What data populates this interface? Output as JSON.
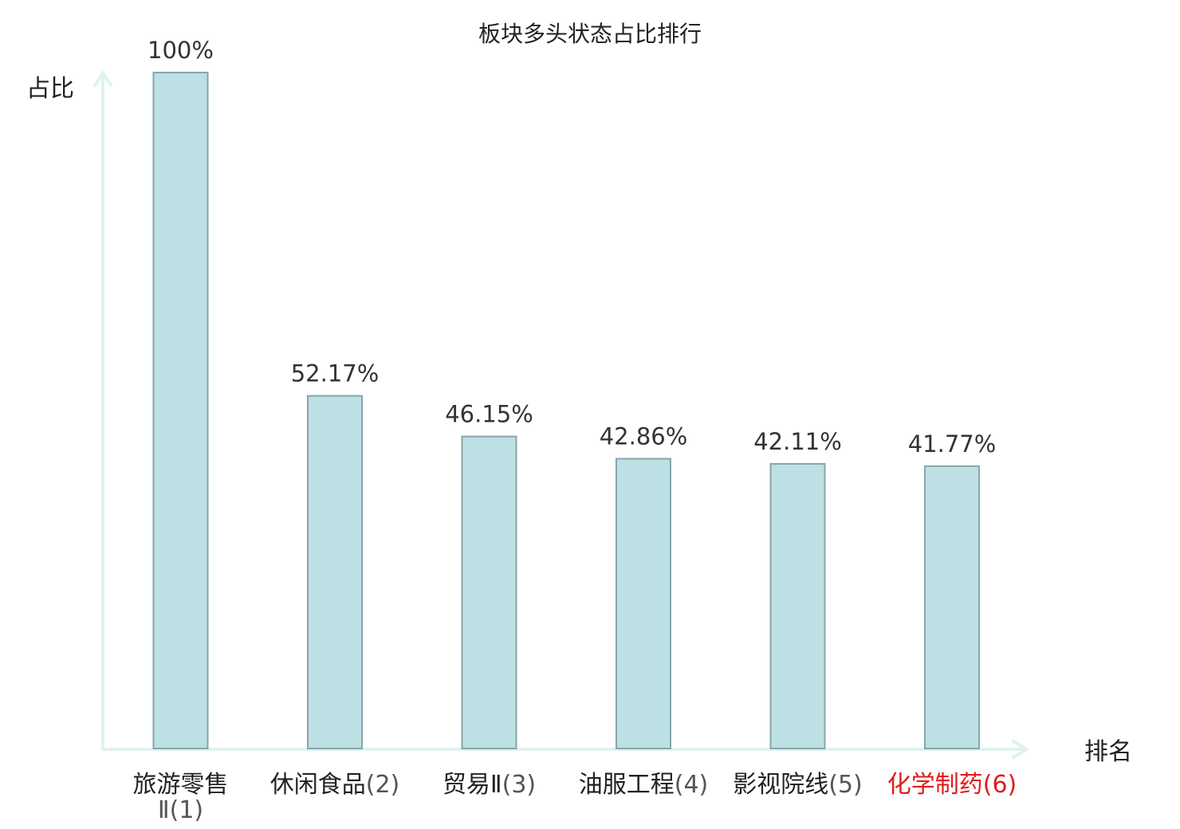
{
  "chart_data": {
    "type": "bar",
    "title": "板块多头状态占比排行",
    "ylabel": "占比",
    "xlabel": "排名",
    "ylim": [
      0,
      100
    ],
    "grid": false,
    "legend": "none",
    "categories": [
      {
        "name": "旅游零售Ⅱ",
        "rank": "(1)",
        "highlight": false
      },
      {
        "name": "休闲食品",
        "rank": "(2)",
        "highlight": false
      },
      {
        "name": "贸易Ⅱ",
        "rank": "(3)",
        "highlight": false
      },
      {
        "name": "油服工程",
        "rank": "(4)",
        "highlight": false
      },
      {
        "name": "影视院线",
        "rank": "(5)",
        "highlight": false
      },
      {
        "name": "化学制药",
        "rank": "(6)",
        "highlight": true
      }
    ],
    "values": [
      100,
      52.17,
      46.15,
      42.86,
      42.11,
      41.77
    ],
    "value_labels": [
      "100%",
      "52.17%",
      "46.15%",
      "42.86%",
      "42.11%",
      "41.77%"
    ],
    "colors": {
      "bar_fill": "#bce0e3",
      "bar_stroke": "#86a6aa",
      "axis": "#e0f2ef",
      "highlight_label": "#e11b1b"
    }
  }
}
